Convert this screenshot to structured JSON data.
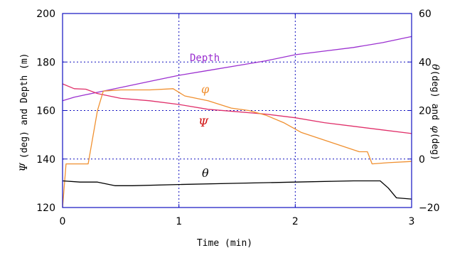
{
  "chart_data": {
    "type": "line",
    "title": "",
    "xlabel": "Time (min)",
    "xlim": [
      0,
      3
    ],
    "x_ticks": [
      0,
      1,
      2,
      3
    ],
    "ylabel_left": {
      "sym1": "Ψ",
      "mid": "(deg) and Depth (m)"
    },
    "ylim_left": [
      120,
      200
    ],
    "y_ticks_left": [
      120,
      140,
      160,
      180,
      200
    ],
    "ylabel_right": {
      "sym1": "θ",
      "mid": "(deg) and ",
      "sym2": "φ",
      "tail": "(deg)"
    },
    "ylim_right": [
      -20,
      60
    ],
    "y_ticks_right": [
      "−20",
      "0",
      "20",
      "40",
      "60"
    ],
    "y_ticks_right_values": [
      -20,
      0,
      20,
      40,
      60
    ],
    "grid": "dotted",
    "series": [
      {
        "name": "Depth",
        "axis": "left",
        "color": "#9b30d0",
        "x": [
          0,
          0.1,
          0.2,
          0.3,
          0.5,
          0.75,
          1.0,
          1.25,
          1.5,
          1.75,
          2.0,
          2.25,
          2.5,
          2.75,
          3.0
        ],
        "y": [
          164,
          165.5,
          166.5,
          167.5,
          169.5,
          172,
          174.5,
          176.5,
          178.5,
          180.5,
          183,
          184.5,
          186,
          188,
          190.5
        ]
      },
      {
        "name": "Ψ",
        "axis": "left",
        "color": "#e0306a",
        "x": [
          0,
          0.1,
          0.2,
          0.3,
          0.5,
          0.75,
          1.0,
          1.25,
          1.5,
          1.75,
          2.0,
          2.25,
          2.5,
          2.75,
          3.0
        ],
        "y": [
          171,
          169,
          168.8,
          167,
          165,
          164,
          162.5,
          160.5,
          159.5,
          158.5,
          157,
          155,
          153.5,
          152,
          150.5
        ]
      },
      {
        "name": "φ",
        "axis": "right",
        "color": "#f09030",
        "x": [
          0,
          0.03,
          0.1,
          0.22,
          0.3,
          0.35,
          0.5,
          0.75,
          0.95,
          1.05,
          1.25,
          1.45,
          1.6,
          1.75,
          1.9,
          2.05,
          2.3,
          2.55,
          2.62,
          2.66,
          2.8,
          3.0
        ],
        "y": [
          -20,
          -2,
          -2,
          -2,
          20,
          28,
          28.5,
          28.5,
          29,
          26,
          24,
          21,
          20,
          18,
          15,
          11,
          7,
          3,
          3,
          -2,
          -1.5,
          -1
        ]
      },
      {
        "name": "θ",
        "axis": "right",
        "color": "#000000",
        "x": [
          0,
          0.15,
          0.3,
          0.45,
          0.6,
          1.0,
          1.5,
          2.0,
          2.5,
          2.73,
          2.8,
          2.87,
          3.0
        ],
        "y": [
          -9,
          -9.5,
          -9.5,
          -11,
          -11,
          -10.5,
          -10,
          -9.5,
          -9,
          -9,
          -12,
          -16,
          -16.5
        ]
      }
    ],
    "annotations": [
      {
        "text": "Depth",
        "color": "#9b30d0"
      },
      {
        "text": "φ",
        "color": "#f09030"
      },
      {
        "text": "Ψ",
        "color": "#d01010"
      },
      {
        "text": "θ",
        "color": "#000000"
      }
    ],
    "frame_color": "#1010c0"
  }
}
